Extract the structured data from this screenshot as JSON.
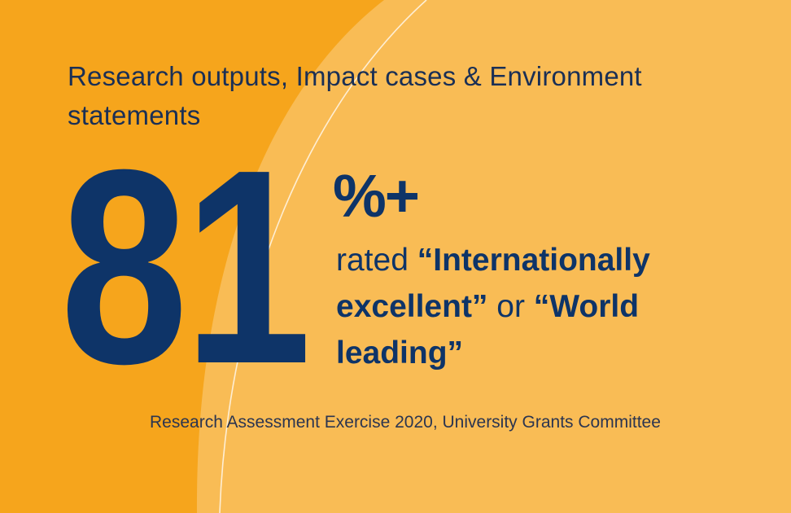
{
  "heading": "Research outputs, Impact cases & Environment statements",
  "stat": {
    "number": "81",
    "suffix": "%+"
  },
  "rating": {
    "prefix": "rated ",
    "term1": "“Internationally excellent”",
    "joiner": " or ",
    "term2": "“World leading”"
  },
  "source": "Research Assessment Exercise 2020, University Grants Committee",
  "colors": {
    "background": "#F6A51C",
    "background_light": "#F9BC55",
    "navy": "#0E3468",
    "text_dark": "#1A2F55"
  }
}
